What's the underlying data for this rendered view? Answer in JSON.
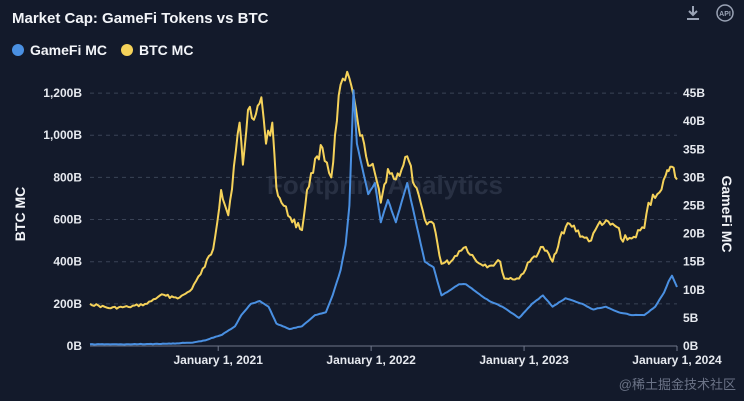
{
  "title": "Market Cap: GameFi Tokens vs BTC",
  "watermark": "Footprint Analytics",
  "corner_watermark": "@稀土掘金技术社区",
  "icons": {
    "download": "download-icon",
    "api": "api-icon"
  },
  "chart_data": {
    "type": "line",
    "title": "Market Cap: GameFi Tokens vs BTC",
    "xlabel": "",
    "ylabel": "BTC MC",
    "y2label": "GameFi MC",
    "x_ticks": [
      "January 1, 2021",
      "January 1, 2022",
      "January 1, 2023",
      "January 1, 2024"
    ],
    "y_ticks": [
      "0B",
      "200B",
      "400B",
      "600B",
      "800B",
      "1,000B",
      "1,200B"
    ],
    "y2_ticks": [
      "0B",
      "5B",
      "10B",
      "15B",
      "20B",
      "25B",
      "30B",
      "35B",
      "40B",
      "45B"
    ],
    "ylim": [
      0,
      1300
    ],
    "y2lim": [
      0,
      48.75
    ],
    "xlim": [
      "2020-03-01",
      "2024-01-01"
    ],
    "legend_position": "top-left",
    "grid": true,
    "series": [
      {
        "name": "BTC MC",
        "axis": "left",
        "color": "#f5d25a",
        "points": [
          [
            "2020-03-01",
            200
          ],
          [
            "2020-04-15",
            180
          ],
          [
            "2020-06-01",
            185
          ],
          [
            "2020-07-15",
            200
          ],
          [
            "2020-08-15",
            240
          ],
          [
            "2020-10-01",
            230
          ],
          [
            "2020-10-25",
            260
          ],
          [
            "2020-11-20",
            340
          ],
          [
            "2020-12-20",
            460
          ],
          [
            "2021-01-08",
            740
          ],
          [
            "2021-01-25",
            620
          ],
          [
            "2021-02-21",
            1060
          ],
          [
            "2021-03-01",
            860
          ],
          [
            "2021-03-13",
            1120
          ],
          [
            "2021-04-01",
            1100
          ],
          [
            "2021-04-14",
            1180
          ],
          [
            "2021-04-25",
            960
          ],
          [
            "2021-05-10",
            1060
          ],
          [
            "2021-05-20",
            750
          ],
          [
            "2021-06-01",
            680
          ],
          [
            "2021-06-22",
            610
          ],
          [
            "2021-07-20",
            550
          ],
          [
            "2021-08-01",
            740
          ],
          [
            "2021-08-25",
            900
          ],
          [
            "2021-09-07",
            940
          ],
          [
            "2021-09-28",
            800
          ],
          [
            "2021-10-20",
            1240
          ],
          [
            "2021-11-10",
            1270
          ],
          [
            "2021-12-01",
            1050
          ],
          [
            "2021-12-20",
            900
          ],
          [
            "2022-01-10",
            820
          ],
          [
            "2022-01-24",
            680
          ],
          [
            "2022-02-10",
            840
          ],
          [
            "2022-03-01",
            790
          ],
          [
            "2022-03-28",
            900
          ],
          [
            "2022-04-15",
            760
          ],
          [
            "2022-05-09",
            600
          ],
          [
            "2022-05-30",
            580
          ],
          [
            "2022-06-18",
            390
          ],
          [
            "2022-07-10",
            400
          ],
          [
            "2022-07-30",
            450
          ],
          [
            "2022-08-15",
            470
          ],
          [
            "2022-09-10",
            400
          ],
          [
            "2022-10-10",
            380
          ],
          [
            "2022-11-05",
            400
          ],
          [
            "2022-11-15",
            320
          ],
          [
            "2022-12-20",
            320
          ],
          [
            "2023-01-15",
            400
          ],
          [
            "2023-02-15",
            470
          ],
          [
            "2023-03-10",
            400
          ],
          [
            "2023-04-01",
            540
          ],
          [
            "2023-04-20",
            580
          ],
          [
            "2023-05-20",
            520
          ],
          [
            "2023-06-10",
            500
          ],
          [
            "2023-07-01",
            590
          ],
          [
            "2023-08-15",
            560
          ],
          [
            "2023-08-20",
            510
          ],
          [
            "2023-09-15",
            510
          ],
          [
            "2023-10-15",
            560
          ],
          [
            "2023-10-25",
            680
          ],
          [
            "2023-11-15",
            720
          ],
          [
            "2023-12-05",
            810
          ],
          [
            "2023-12-12",
            830
          ],
          [
            "2023-12-20",
            850
          ],
          [
            "2024-01-01",
            790
          ]
        ]
      },
      {
        "name": "GameFi MC",
        "axis": "right",
        "color": "#4a90e2",
        "points": [
          [
            "2020-03-01",
            0.3
          ],
          [
            "2020-06-01",
            0.3
          ],
          [
            "2020-09-01",
            0.4
          ],
          [
            "2020-11-01",
            0.6
          ],
          [
            "2020-12-01",
            1.0
          ],
          [
            "2021-01-10",
            2.0
          ],
          [
            "2021-02-10",
            3.5
          ],
          [
            "2021-02-25",
            5.5
          ],
          [
            "2021-03-20",
            7.5
          ],
          [
            "2021-04-10",
            8.0
          ],
          [
            "2021-05-01",
            7.0
          ],
          [
            "2021-05-20",
            4.0
          ],
          [
            "2021-06-20",
            3.0
          ],
          [
            "2021-07-20",
            3.5
          ],
          [
            "2021-08-20",
            5.5
          ],
          [
            "2021-09-15",
            6.0
          ],
          [
            "2021-10-01",
            9.0
          ],
          [
            "2021-10-20",
            13.5
          ],
          [
            "2021-11-01",
            18.0
          ],
          [
            "2021-11-10",
            25.0
          ],
          [
            "2021-11-20",
            45.5
          ],
          [
            "2021-11-28",
            36.0
          ],
          [
            "2021-12-10",
            32.0
          ],
          [
            "2021-12-25",
            27.0
          ],
          [
            "2022-01-10",
            29.0
          ],
          [
            "2022-01-24",
            22.0
          ],
          [
            "2022-02-10",
            26.0
          ],
          [
            "2022-03-01",
            22.0
          ],
          [
            "2022-03-28",
            29.0
          ],
          [
            "2022-04-15",
            23.0
          ],
          [
            "2022-05-09",
            15.0
          ],
          [
            "2022-05-30",
            14.0
          ],
          [
            "2022-06-18",
            9.0
          ],
          [
            "2022-07-10",
            10.0
          ],
          [
            "2022-07-30",
            11.0
          ],
          [
            "2022-08-15",
            11.0
          ],
          [
            "2022-09-20",
            9.0
          ],
          [
            "2022-10-10",
            8.0
          ],
          [
            "2022-11-10",
            7.0
          ],
          [
            "2022-12-20",
            5.0
          ],
          [
            "2023-01-20",
            7.5
          ],
          [
            "2023-02-15",
            9.0
          ],
          [
            "2023-03-10",
            7.0
          ],
          [
            "2023-04-10",
            8.5
          ],
          [
            "2023-05-20",
            7.5
          ],
          [
            "2023-06-15",
            6.5
          ],
          [
            "2023-07-15",
            7.0
          ],
          [
            "2023-08-15",
            6.0
          ],
          [
            "2023-09-15",
            5.5
          ],
          [
            "2023-10-15",
            5.5
          ],
          [
            "2023-11-10",
            7.0
          ],
          [
            "2023-12-01",
            9.5
          ],
          [
            "2023-12-12",
            11.5
          ],
          [
            "2023-12-20",
            12.5
          ],
          [
            "2024-01-01",
            10.5
          ]
        ]
      }
    ]
  }
}
